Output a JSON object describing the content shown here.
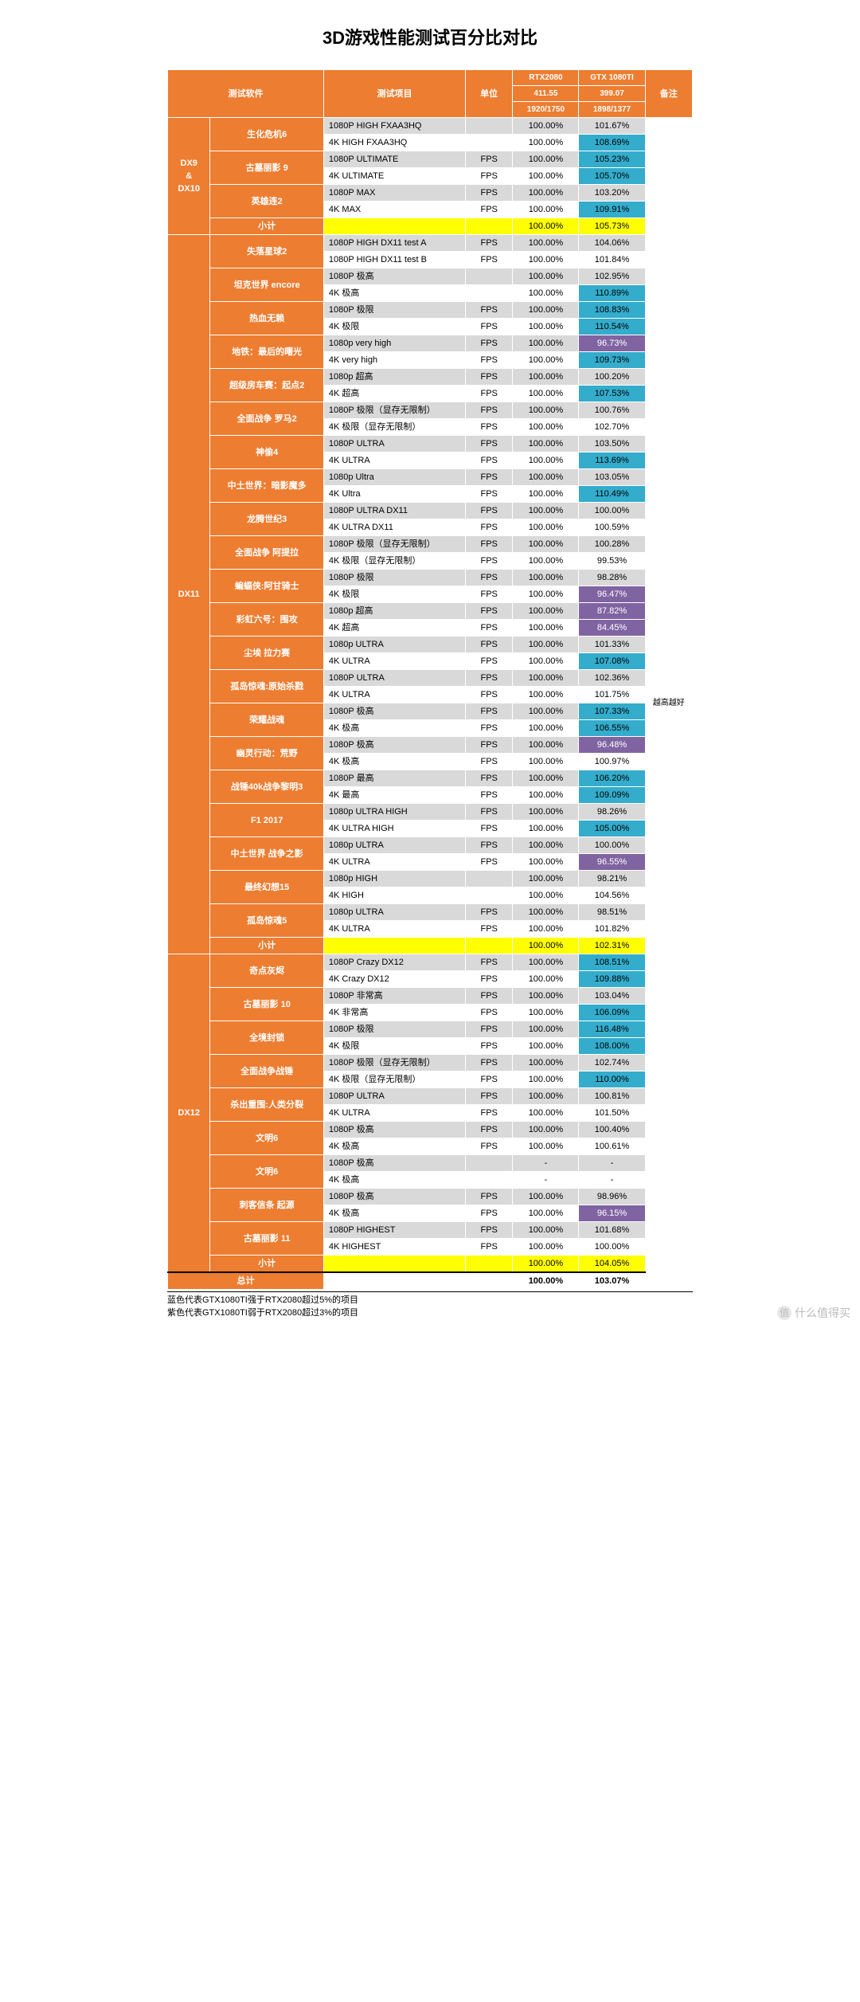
{
  "title": "3D游戏性能测试百分比对比",
  "header": {
    "col1": "测试软件",
    "col2": "测试项目",
    "col3": "单位",
    "col4_l1": "RTX2080",
    "col4_l2": "411.55",
    "col4_l3": "1920/1750",
    "col5_l1": "GTX 1080TI",
    "col5_l2": "399.07",
    "col5_l3": "1898/1377",
    "col6": "备注"
  },
  "colors": {
    "orange": "#ed7d31",
    "grey": "#d9d9d9",
    "white": "#ffffff",
    "blue": "#34accc",
    "purple": "#8064a2",
    "yellow": "#ffff00"
  },
  "sections": [
    {
      "name": "DX9\n&\nDX10",
      "groups": [
        {
          "game": "生化危机6",
          "rows": [
            {
              "item": "1080P HIGH FXAA3HQ",
              "unit": "",
              "rtx": "100.00%",
              "gtx": "101.67%",
              "gclass": "grey-c"
            },
            {
              "item": "4K HIGH FXAA3HQ",
              "unit": "",
              "rtx": "100.00%",
              "gtx": "108.69%",
              "gclass": "blue"
            }
          ]
        },
        {
          "game": "古墓丽影 9",
          "rows": [
            {
              "item": "1080P ULTIMATE",
              "unit": "FPS",
              "rtx": "100.00%",
              "gtx": "105.23%",
              "gclass": "blue"
            },
            {
              "item": "4K ULTIMATE",
              "unit": "FPS",
              "rtx": "100.00%",
              "gtx": "105.70%",
              "gclass": "blue"
            }
          ]
        },
        {
          "game": "英雄连2",
          "rows": [
            {
              "item": "1080P MAX",
              "unit": "FPS",
              "rtx": "100.00%",
              "gtx": "103.20%",
              "gclass": "grey-c"
            },
            {
              "item": "4K MAX",
              "unit": "FPS",
              "rtx": "100.00%",
              "gtx": "109.91%",
              "gclass": "blue"
            }
          ]
        }
      ],
      "subtotal": {
        "label": "小计",
        "rtx": "100.00%",
        "gtx": "105.73%"
      }
    },
    {
      "name": "DX11",
      "groups": [
        {
          "game": "失落星球2",
          "rows": [
            {
              "item": "1080P HIGH DX11 test A",
              "unit": "FPS",
              "rtx": "100.00%",
              "gtx": "104.06%",
              "gclass": "grey-c"
            },
            {
              "item": "1080P HIGH DX11 test B",
              "unit": "FPS",
              "rtx": "100.00%",
              "gtx": "101.84%",
              "gclass": "white-c"
            }
          ]
        },
        {
          "game": "坦克世界 encore",
          "rows": [
            {
              "item": "1080P 极高",
              "unit": "",
              "rtx": "100.00%",
              "gtx": "102.95%",
              "gclass": "grey-c"
            },
            {
              "item": "4K 极高",
              "unit": "",
              "rtx": "100.00%",
              "gtx": "110.89%",
              "gclass": "blue"
            }
          ]
        },
        {
          "game": "热血无赖",
          "rows": [
            {
              "item": "1080P 极限",
              "unit": "FPS",
              "rtx": "100.00%",
              "gtx": "108.83%",
              "gclass": "blue"
            },
            {
              "item": "4K 极限",
              "unit": "FPS",
              "rtx": "100.00%",
              "gtx": "110.54%",
              "gclass": "blue"
            }
          ]
        },
        {
          "game": "地铁：最后的曙光",
          "rows": [
            {
              "item": "1080p very high",
              "unit": "FPS",
              "rtx": "100.00%",
              "gtx": "96.73%",
              "gclass": "purple"
            },
            {
              "item": "4K very high",
              "unit": "FPS",
              "rtx": "100.00%",
              "gtx": "109.73%",
              "gclass": "blue"
            }
          ]
        },
        {
          "game": "超级房车赛：起点2",
          "rows": [
            {
              "item": "1080p 超高",
              "unit": "FPS",
              "rtx": "100.00%",
              "gtx": "100.20%",
              "gclass": "grey-c"
            },
            {
              "item": "4K 超高",
              "unit": "FPS",
              "rtx": "100.00%",
              "gtx": "107.53%",
              "gclass": "blue"
            }
          ]
        },
        {
          "game": "全面战争 罗马2",
          "rows": [
            {
              "item": "1080P 极限（显存无限制）",
              "unit": "FPS",
              "rtx": "100.00%",
              "gtx": "100.76%",
              "gclass": "grey-c"
            },
            {
              "item": "4K 极限（显存无限制）",
              "unit": "FPS",
              "rtx": "100.00%",
              "gtx": "102.70%",
              "gclass": "white-c"
            }
          ]
        },
        {
          "game": "神偷4",
          "rows": [
            {
              "item": "1080P ULTRA",
              "unit": "FPS",
              "rtx": "100.00%",
              "gtx": "103.50%",
              "gclass": "grey-c"
            },
            {
              "item": "4K ULTRA",
              "unit": "FPS",
              "rtx": "100.00%",
              "gtx": "113.69%",
              "gclass": "blue"
            }
          ]
        },
        {
          "game": "中土世界：暗影魔多",
          "rows": [
            {
              "item": "1080p Ultra",
              "unit": "FPS",
              "rtx": "100.00%",
              "gtx": "103.05%",
              "gclass": "grey-c"
            },
            {
              "item": "4K Ultra",
              "unit": "FPS",
              "rtx": "100.00%",
              "gtx": "110.49%",
              "gclass": "blue"
            }
          ]
        },
        {
          "game": "龙腾世纪3",
          "rows": [
            {
              "item": "1080P ULTRA DX11",
              "unit": "FPS",
              "rtx": "100.00%",
              "gtx": "100.00%",
              "gclass": "grey-c"
            },
            {
              "item": "4K ULTRA DX11",
              "unit": "FPS",
              "rtx": "100.00%",
              "gtx": "100.59%",
              "gclass": "white-c"
            }
          ]
        },
        {
          "game": "全面战争 阿提拉",
          "rows": [
            {
              "item": "1080P 极限（显存无限制）",
              "unit": "FPS",
              "rtx": "100.00%",
              "gtx": "100.28%",
              "gclass": "grey-c"
            },
            {
              "item": "4K 极限（显存无限制）",
              "unit": "FPS",
              "rtx": "100.00%",
              "gtx": "99.53%",
              "gclass": "white-c"
            }
          ]
        },
        {
          "game": "蝙蝠侠:阿甘骑士",
          "rows": [
            {
              "item": "1080P 极限",
              "unit": "FPS",
              "rtx": "100.00%",
              "gtx": "98.28%",
              "gclass": "grey-c"
            },
            {
              "item": "4K 极限",
              "unit": "FPS",
              "rtx": "100.00%",
              "gtx": "96.47%",
              "gclass": "purple"
            }
          ]
        },
        {
          "game": "彩虹六号：围攻",
          "rows": [
            {
              "item": "1080p 超高",
              "unit": "FPS",
              "rtx": "100.00%",
              "gtx": "87.82%",
              "gclass": "purple"
            },
            {
              "item": "4K 超高",
              "unit": "FPS",
              "rtx": "100.00%",
              "gtx": "84.45%",
              "gclass": "purple"
            }
          ]
        },
        {
          "game": "尘埃 拉力赛",
          "rows": [
            {
              "item": "1080p ULTRA",
              "unit": "FPS",
              "rtx": "100.00%",
              "gtx": "101.33%",
              "gclass": "grey-c"
            },
            {
              "item": "4K ULTRA",
              "unit": "FPS",
              "rtx": "100.00%",
              "gtx": "107.08%",
              "gclass": "blue"
            }
          ]
        },
        {
          "game": "孤岛惊魂:原始杀戮",
          "rows": [
            {
              "item": "1080P ULTRA",
              "unit": "FPS",
              "rtx": "100.00%",
              "gtx": "102.36%",
              "gclass": "grey-c"
            },
            {
              "item": "4K ULTRA",
              "unit": "FPS",
              "rtx": "100.00%",
              "gtx": "101.75%",
              "gclass": "white-c"
            }
          ]
        },
        {
          "game": "荣耀战魂",
          "rows": [
            {
              "item": "1080P 极高",
              "unit": "FPS",
              "rtx": "100.00%",
              "gtx": "107.33%",
              "gclass": "blue"
            },
            {
              "item": "4K 极高",
              "unit": "FPS",
              "rtx": "100.00%",
              "gtx": "106.55%",
              "gclass": "blue"
            }
          ]
        },
        {
          "game": "幽灵行动：荒野",
          "rows": [
            {
              "item": "1080P 极高",
              "unit": "FPS",
              "rtx": "100.00%",
              "gtx": "96.48%",
              "gclass": "purple"
            },
            {
              "item": "4K 极高",
              "unit": "FPS",
              "rtx": "100.00%",
              "gtx": "100.97%",
              "gclass": "white-c"
            }
          ]
        },
        {
          "game": "战锤40k战争黎明3",
          "rows": [
            {
              "item": "1080P 最高",
              "unit": "FPS",
              "rtx": "100.00%",
              "gtx": "106.20%",
              "gclass": "blue"
            },
            {
              "item": "4K 最高",
              "unit": "FPS",
              "rtx": "100.00%",
              "gtx": "109.09%",
              "gclass": "blue"
            }
          ]
        },
        {
          "game": "F1 2017",
          "rows": [
            {
              "item": "1080p ULTRA HIGH",
              "unit": "FPS",
              "rtx": "100.00%",
              "gtx": "98.26%",
              "gclass": "grey-c"
            },
            {
              "item": "4K ULTRA HIGH",
              "unit": "FPS",
              "rtx": "100.00%",
              "gtx": "105.00%",
              "gclass": "blue"
            }
          ]
        },
        {
          "game": "中土世界 战争之影",
          "rows": [
            {
              "item": "1080p ULTRA",
              "unit": "FPS",
              "rtx": "100.00%",
              "gtx": "100.00%",
              "gclass": "grey-c"
            },
            {
              "item": "4K ULTRA",
              "unit": "FPS",
              "rtx": "100.00%",
              "gtx": "96.55%",
              "gclass": "purple"
            }
          ]
        },
        {
          "game": "最终幻想15",
          "rows": [
            {
              "item": "1080p HIGH",
              "unit": "",
              "rtx": "100.00%",
              "gtx": "98.21%",
              "gclass": "grey-c"
            },
            {
              "item": "4K HIGH",
              "unit": "",
              "rtx": "100.00%",
              "gtx": "104.56%",
              "gclass": "white-c"
            }
          ]
        },
        {
          "game": "孤岛惊魂5",
          "rows": [
            {
              "item": "1080p ULTRA",
              "unit": "FPS",
              "rtx": "100.00%",
              "gtx": "98.51%",
              "gclass": "grey-c"
            },
            {
              "item": "4K ULTRA",
              "unit": "FPS",
              "rtx": "100.00%",
              "gtx": "101.82%",
              "gclass": "white-c"
            }
          ]
        }
      ],
      "subtotal": {
        "label": "小计",
        "rtx": "100.00%",
        "gtx": "102.31%"
      }
    },
    {
      "name": "DX12",
      "groups": [
        {
          "game": "奇点灰烬",
          "rows": [
            {
              "item": "1080P Crazy DX12",
              "unit": "FPS",
              "rtx": "100.00%",
              "gtx": "108.51%",
              "gclass": "blue"
            },
            {
              "item": "4K Crazy DX12",
              "unit": "FPS",
              "rtx": "100.00%",
              "gtx": "109.88%",
              "gclass": "blue"
            }
          ]
        },
        {
          "game": "古墓丽影 10",
          "rows": [
            {
              "item": "1080P 非常高",
              "unit": "FPS",
              "rtx": "100.00%",
              "gtx": "103.04%",
              "gclass": "grey-c"
            },
            {
              "item": "4K 非常高",
              "unit": "FPS",
              "rtx": "100.00%",
              "gtx": "106.09%",
              "gclass": "blue"
            }
          ]
        },
        {
          "game": "全境封锁",
          "rows": [
            {
              "item": "1080P 极限",
              "unit": "FPS",
              "rtx": "100.00%",
              "gtx": "116.48%",
              "gclass": "blue"
            },
            {
              "item": "4K 极限",
              "unit": "FPS",
              "rtx": "100.00%",
              "gtx": "108.00%",
              "gclass": "blue"
            }
          ]
        },
        {
          "game": "全面战争战锤",
          "rows": [
            {
              "item": "1080P 极限（显存无限制）",
              "unit": "FPS",
              "rtx": "100.00%",
              "gtx": "102.74%",
              "gclass": "grey-c"
            },
            {
              "item": "4K 极限（显存无限制）",
              "unit": "FPS",
              "rtx": "100.00%",
              "gtx": "110.00%",
              "gclass": "blue"
            }
          ]
        },
        {
          "game": "杀出重围:人类分裂",
          "rows": [
            {
              "item": "1080P ULTRA",
              "unit": "FPS",
              "rtx": "100.00%",
              "gtx": "100.81%",
              "gclass": "grey-c"
            },
            {
              "item": "4K ULTRA",
              "unit": "FPS",
              "rtx": "100.00%",
              "gtx": "101.50%",
              "gclass": "white-c"
            }
          ]
        },
        {
          "game": "文明6",
          "rows": [
            {
              "item": "1080P 极高",
              "unit": "FPS",
              "rtx": "100.00%",
              "gtx": "100.40%",
              "gclass": "grey-c"
            },
            {
              "item": "4K 极高",
              "unit": "FPS",
              "rtx": "100.00%",
              "gtx": "100.61%",
              "gclass": "white-c"
            }
          ]
        },
        {
          "game": "文明6",
          "rows": [
            {
              "item": "1080P 极高",
              "unit": "",
              "rtx": "-",
              "gtx": "-",
              "gclass": "grey-c"
            },
            {
              "item": "4K 极高",
              "unit": "",
              "rtx": "-",
              "gtx": "-",
              "gclass": "white-c"
            }
          ]
        },
        {
          "game": "刺客信条 起源",
          "rows": [
            {
              "item": "1080P 极高",
              "unit": "FPS",
              "rtx": "100.00%",
              "gtx": "98.96%",
              "gclass": "grey-c"
            },
            {
              "item": "4K 极高",
              "unit": "FPS",
              "rtx": "100.00%",
              "gtx": "96.15%",
              "gclass": "purple"
            }
          ]
        },
        {
          "game": "古墓丽影 11",
          "rows": [
            {
              "item": "1080P HIGHEST",
              "unit": "FPS",
              "rtx": "100.00%",
              "gtx": "101.68%",
              "gclass": "grey-c"
            },
            {
              "item": "4K HIGHEST",
              "unit": "FPS",
              "rtx": "100.00%",
              "gtx": "100.00%",
              "gclass": "white-c"
            }
          ]
        }
      ],
      "subtotal": {
        "label": "小计",
        "rtx": "100.00%",
        "gtx": "104.05%"
      }
    }
  ],
  "total": {
    "label": "总计",
    "rtx": "100.00%",
    "gtx": "103.07%"
  },
  "sidenote": "越高越好",
  "footnotes": [
    "蓝色代表GTX1080TI强于RTX2080超过5%的项目",
    "紫色代表GTX1080TI弱于RTX2080超过3%的项目"
  ],
  "watermark": "值 | 什么值得买"
}
